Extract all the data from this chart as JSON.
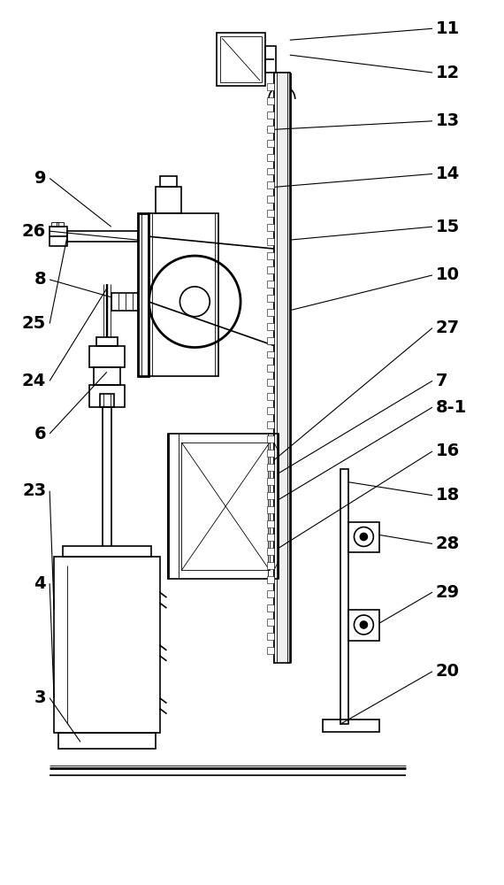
{
  "bg_color": "#ffffff",
  "lw": 1.2,
  "tlw": 0.6,
  "thk": 2.0,
  "fig_w": 5.7,
  "fig_h": 10.0
}
